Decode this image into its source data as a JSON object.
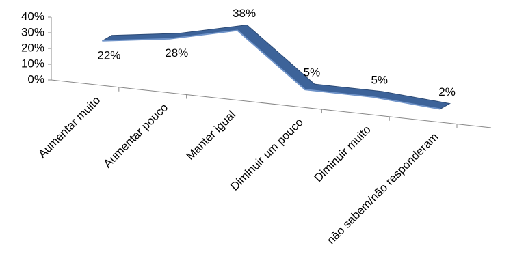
{
  "chart_data": {
    "type": "line3d",
    "categories": [
      "Aumentar muito",
      "Aumentar pouco",
      "Manter igual",
      "Diminuir um pouco",
      "Diminuir muito",
      "não sabem/não responderam"
    ],
    "values": [
      22,
      28,
      38,
      5,
      5,
      2
    ],
    "value_labels": [
      "22%",
      "28%",
      "38%",
      "5%",
      "5%",
      "2%"
    ],
    "color": "#3d6399",
    "ylim": [
      0,
      40
    ],
    "yticks": [
      {
        "value": 0,
        "label": "0%"
      },
      {
        "value": 10,
        "label": "10%"
      },
      {
        "value": 20,
        "label": "20%"
      },
      {
        "value": 30,
        "label": "30%"
      },
      {
        "value": 40,
        "label": "40%"
      }
    ]
  }
}
